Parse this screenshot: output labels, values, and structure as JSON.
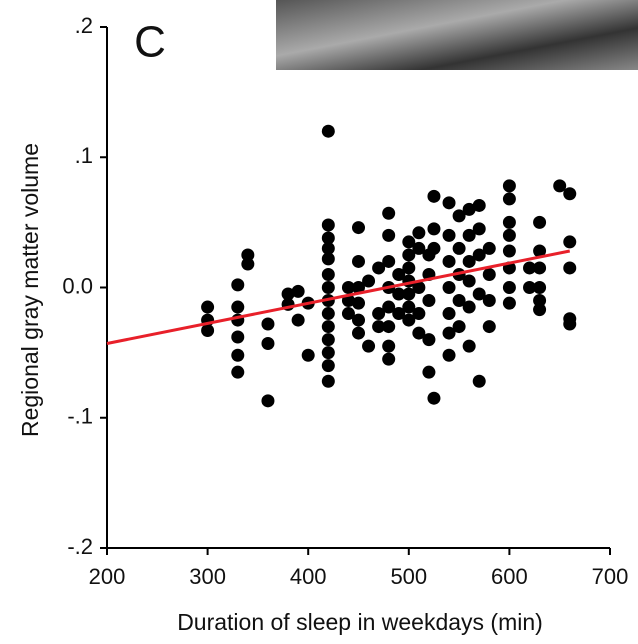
{
  "chart_data": {
    "type": "scatter",
    "panel_label": "C",
    "x_label": "Duration of sleep in weekdays (min)",
    "y_label": "Regional gray matter volume",
    "x": [
      300,
      300,
      300,
      330,
      330,
      330,
      330,
      330,
      330,
      340,
      340,
      360,
      360,
      360,
      380,
      380,
      390,
      390,
      400,
      400,
      420,
      420,
      420,
      420,
      420,
      420,
      420,
      420,
      420,
      420,
      420,
      420,
      420,
      420,
      440,
      440,
      440,
      450,
      450,
      450,
      450,
      450,
      450,
      460,
      460,
      470,
      470,
      470,
      480,
      480,
      480,
      480,
      480,
      480,
      480,
      480,
      490,
      490,
      490,
      500,
      500,
      500,
      500,
      500,
      500,
      500,
      510,
      510,
      510,
      510,
      510,
      520,
      520,
      520,
      520,
      520,
      525,
      525,
      525,
      525,
      540,
      540,
      540,
      540,
      540,
      540,
      540,
      550,
      550,
      550,
      550,
      550,
      560,
      560,
      560,
      560,
      560,
      560,
      570,
      570,
      570,
      570,
      570,
      580,
      580,
      580,
      580,
      600,
      600,
      600,
      600,
      600,
      600,
      600,
      600,
      620,
      620,
      630,
      630,
      630,
      630,
      630,
      630,
      650,
      660,
      660,
      660,
      660,
      660
    ],
    "values": [
      -0.015,
      -0.025,
      -0.033,
      0.002,
      -0.015,
      -0.025,
      -0.038,
      -0.052,
      -0.065,
      0.025,
      0.018,
      -0.028,
      -0.043,
      -0.087,
      -0.005,
      -0.013,
      -0.003,
      -0.025,
      -0.012,
      -0.052,
      0.12,
      0.048,
      0.038,
      0.03,
      0.022,
      0.01,
      0,
      -0.01,
      -0.02,
      -0.03,
      -0.04,
      -0.05,
      -0.06,
      -0.072,
      0,
      -0.01,
      -0.02,
      0.046,
      0.02,
      0,
      -0.012,
      -0.025,
      -0.035,
      0.005,
      -0.045,
      0.015,
      -0.02,
      -0.03,
      0.057,
      0.04,
      0.02,
      0,
      -0.015,
      -0.03,
      -0.045,
      -0.055,
      0.01,
      -0.005,
      -0.02,
      0.035,
      0.025,
      0.015,
      0.005,
      -0.005,
      -0.015,
      -0.025,
      0.042,
      0.03,
      0,
      -0.02,
      -0.035,
      0.025,
      0.01,
      -0.01,
      -0.04,
      -0.065,
      0.07,
      0.045,
      0.03,
      -0.085,
      0.065,
      0.04,
      0.02,
      0,
      -0.02,
      -0.035,
      -0.052,
      0.055,
      0.03,
      0.01,
      -0.01,
      -0.03,
      0.06,
      0.04,
      0.02,
      0.005,
      -0.015,
      -0.045,
      0.063,
      0.045,
      0.025,
      -0.005,
      -0.072,
      0.03,
      0.01,
      -0.01,
      -0.03,
      0.078,
      0.068,
      0.05,
      0.04,
      0.028,
      0.015,
      0,
      -0.012,
      0.015,
      0,
      0.05,
      0.028,
      0.015,
      0,
      -0.01,
      -0.017,
      0.078,
      0.072,
      0.035,
      0.015,
      -0.024,
      -0.028
    ],
    "color": "#000000",
    "trend": {
      "x": [
        200,
        660
      ],
      "y": [
        -0.043,
        0.028
      ],
      "color": "#e8202a"
    },
    "xlim": [
      200,
      700
    ],
    "ylim": [
      -0.2,
      0.2
    ],
    "xticks": [
      200,
      300,
      400,
      500,
      600,
      700
    ],
    "yticks": [
      {
        "value": -0.2,
        "label": "-.2"
      },
      {
        "value": -0.1,
        "label": "-.1"
      },
      {
        "value": 0,
        "label": "0.0"
      },
      {
        "value": 0.1,
        "label": ".1"
      },
      {
        "value": 0.2,
        "label": ".2"
      }
    ]
  }
}
